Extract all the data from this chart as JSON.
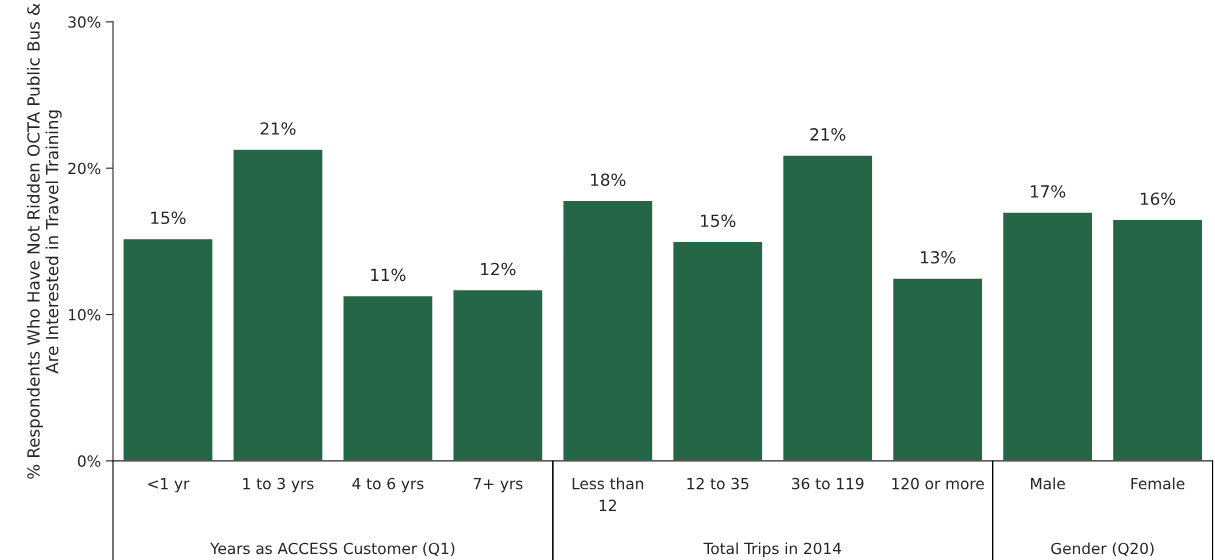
{
  "chart_data": {
    "type": "bar",
    "ylabel": "% Respondents Who Have Not Ridden OCTA Public Bus & Are Interested in Travel Training",
    "categories": [
      "<1 yr",
      "1 to 3 yrs",
      "4 to 6 yrs",
      "7+ yrs",
      "Less than\n12",
      "12 to 35",
      "36 to 119",
      "120 or more",
      "Male",
      "Female"
    ],
    "values": [
      15.2,
      21.3,
      11.3,
      11.7,
      17.8,
      15.0,
      20.9,
      12.5,
      17.0,
      16.5
    ],
    "value_labels": [
      "15%",
      "21%",
      "11%",
      "12%",
      "18%",
      "15%",
      "21%",
      "13%",
      "17%",
      "16%"
    ],
    "color": "#246645",
    "ylim": [
      0,
      30
    ],
    "yticks": [
      {
        "value": 0,
        "label": "0%"
      },
      {
        "value": 10,
        "label": "10%"
      },
      {
        "value": 20,
        "label": "20%"
      },
      {
        "value": 30,
        "label": "30%"
      }
    ],
    "annotations": [
      "Years as ACCESS Customer (Q1)",
      "Total Trips in 2014",
      "Gender (Q20)"
    ],
    "grid": false,
    "legend": false
  }
}
